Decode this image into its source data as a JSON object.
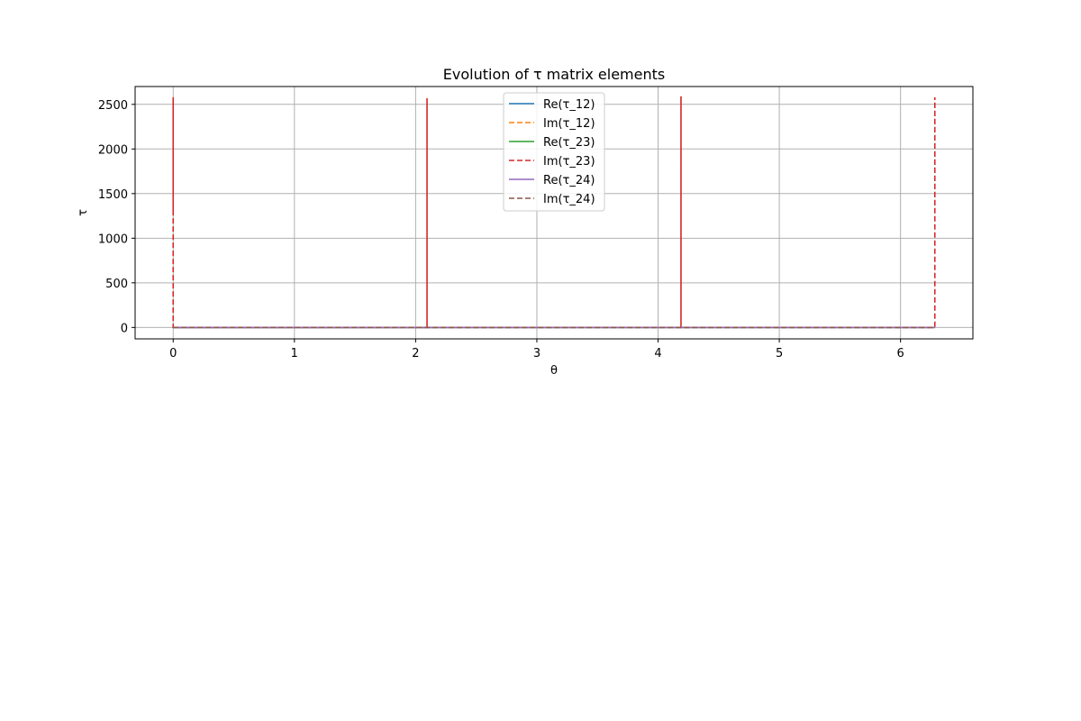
{
  "chart_data": {
    "type": "line",
    "title": "Evolution of τ matrix elements",
    "xlabel": "θ",
    "ylabel": "τ",
    "xlim": [
      -0.314,
      6.597
    ],
    "ylim": [
      -128,
      2700
    ],
    "xticks": [
      0,
      1,
      2,
      3,
      4,
      5,
      6
    ],
    "yticks": [
      0,
      500,
      1000,
      1500,
      2000,
      2500
    ],
    "xtick_labels": [
      "0",
      "1",
      "2",
      "3",
      "4",
      "5",
      "6"
    ],
    "ytick_labels": [
      "0",
      "500",
      "1000",
      "1500",
      "2000",
      "2500"
    ],
    "grid": true,
    "legend_position": "top-center",
    "series": [
      {
        "name": "Re(τ_12)",
        "color": "#1f77b4",
        "dash": "solid",
        "points": [
          [
            0,
            0
          ],
          [
            6.283,
            0
          ]
        ]
      },
      {
        "name": "Im(τ_12)",
        "color": "#ff7f0e",
        "dash": "dashed",
        "points": [
          [
            0,
            0
          ],
          [
            6.283,
            0
          ]
        ]
      },
      {
        "name": "Re(τ_23)",
        "color": "#2ca02c",
        "dash": "solid",
        "points": [
          [
            0,
            0
          ],
          [
            6.283,
            0
          ]
        ]
      },
      {
        "name": "Im(τ_23)",
        "color": "#d62728",
        "dash": "dashed",
        "points": [
          [
            0,
            1300
          ],
          [
            0,
            2580
          ],
          [
            0,
            0
          ],
          [
            2.094,
            0
          ],
          [
            2.094,
            2570
          ],
          [
            2.094,
            0
          ],
          [
            4.189,
            0
          ],
          [
            4.189,
            2590
          ],
          [
            4.189,
            0
          ],
          [
            6.283,
            0
          ],
          [
            6.283,
            2580
          ],
          [
            6.283,
            1280
          ]
        ]
      },
      {
        "name": "Re(τ_24)",
        "color": "#9467bd",
        "dash": "solid",
        "points": [
          [
            0,
            0
          ],
          [
            6.283,
            0
          ]
        ]
      },
      {
        "name": "Im(τ_24)",
        "color": "#8c564b",
        "dash": "dashed",
        "points": [
          [
            0,
            0
          ],
          [
            6.283,
            0
          ]
        ]
      }
    ]
  }
}
